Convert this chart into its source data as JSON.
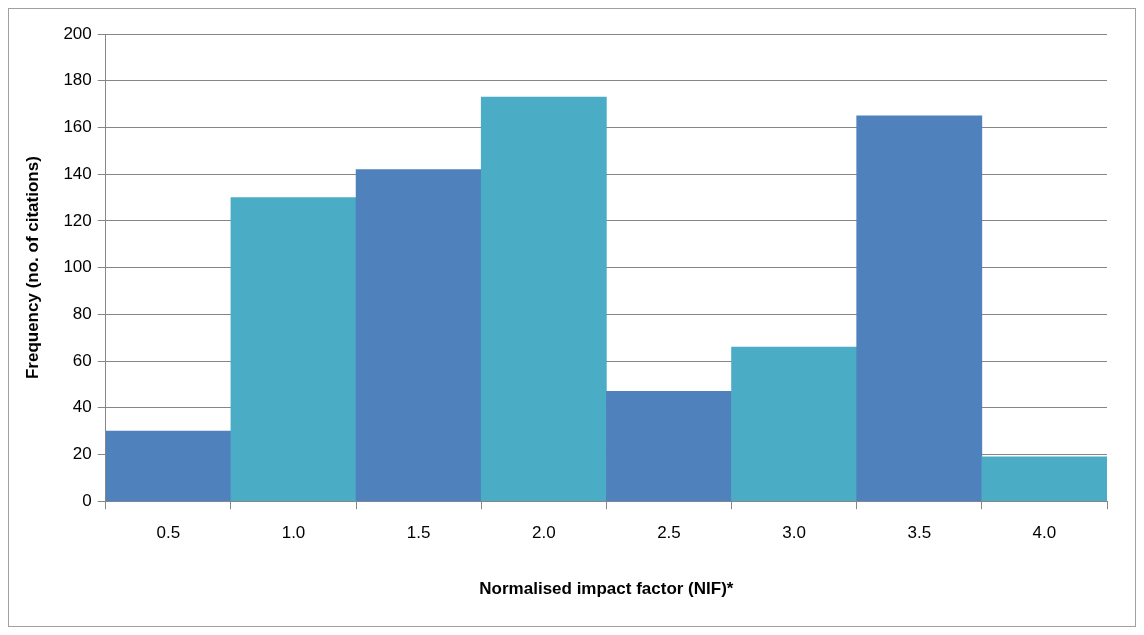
{
  "chart_data": {
    "type": "bar",
    "categories": [
      "0.5",
      "1.0",
      "1.5",
      "2.0",
      "2.5",
      "3.0",
      "3.5",
      "4.0"
    ],
    "values": [
      30,
      130,
      142,
      173,
      47,
      66,
      165,
      19
    ],
    "colors": [
      "#4f81bd",
      "#4bacc6",
      "#4f81bd",
      "#4bacc6",
      "#4f81bd",
      "#4bacc6",
      "#4f81bd",
      "#4bacc6"
    ],
    "xlabel": "Normalised impact factor (NIF)*",
    "ylabel": "Frequency (no. of citations)",
    "ylim": [
      0,
      200
    ],
    "yticks": [
      0,
      20,
      40,
      60,
      80,
      100,
      120,
      140,
      160,
      180,
      200
    ],
    "grid": "y",
    "legend": false
  }
}
